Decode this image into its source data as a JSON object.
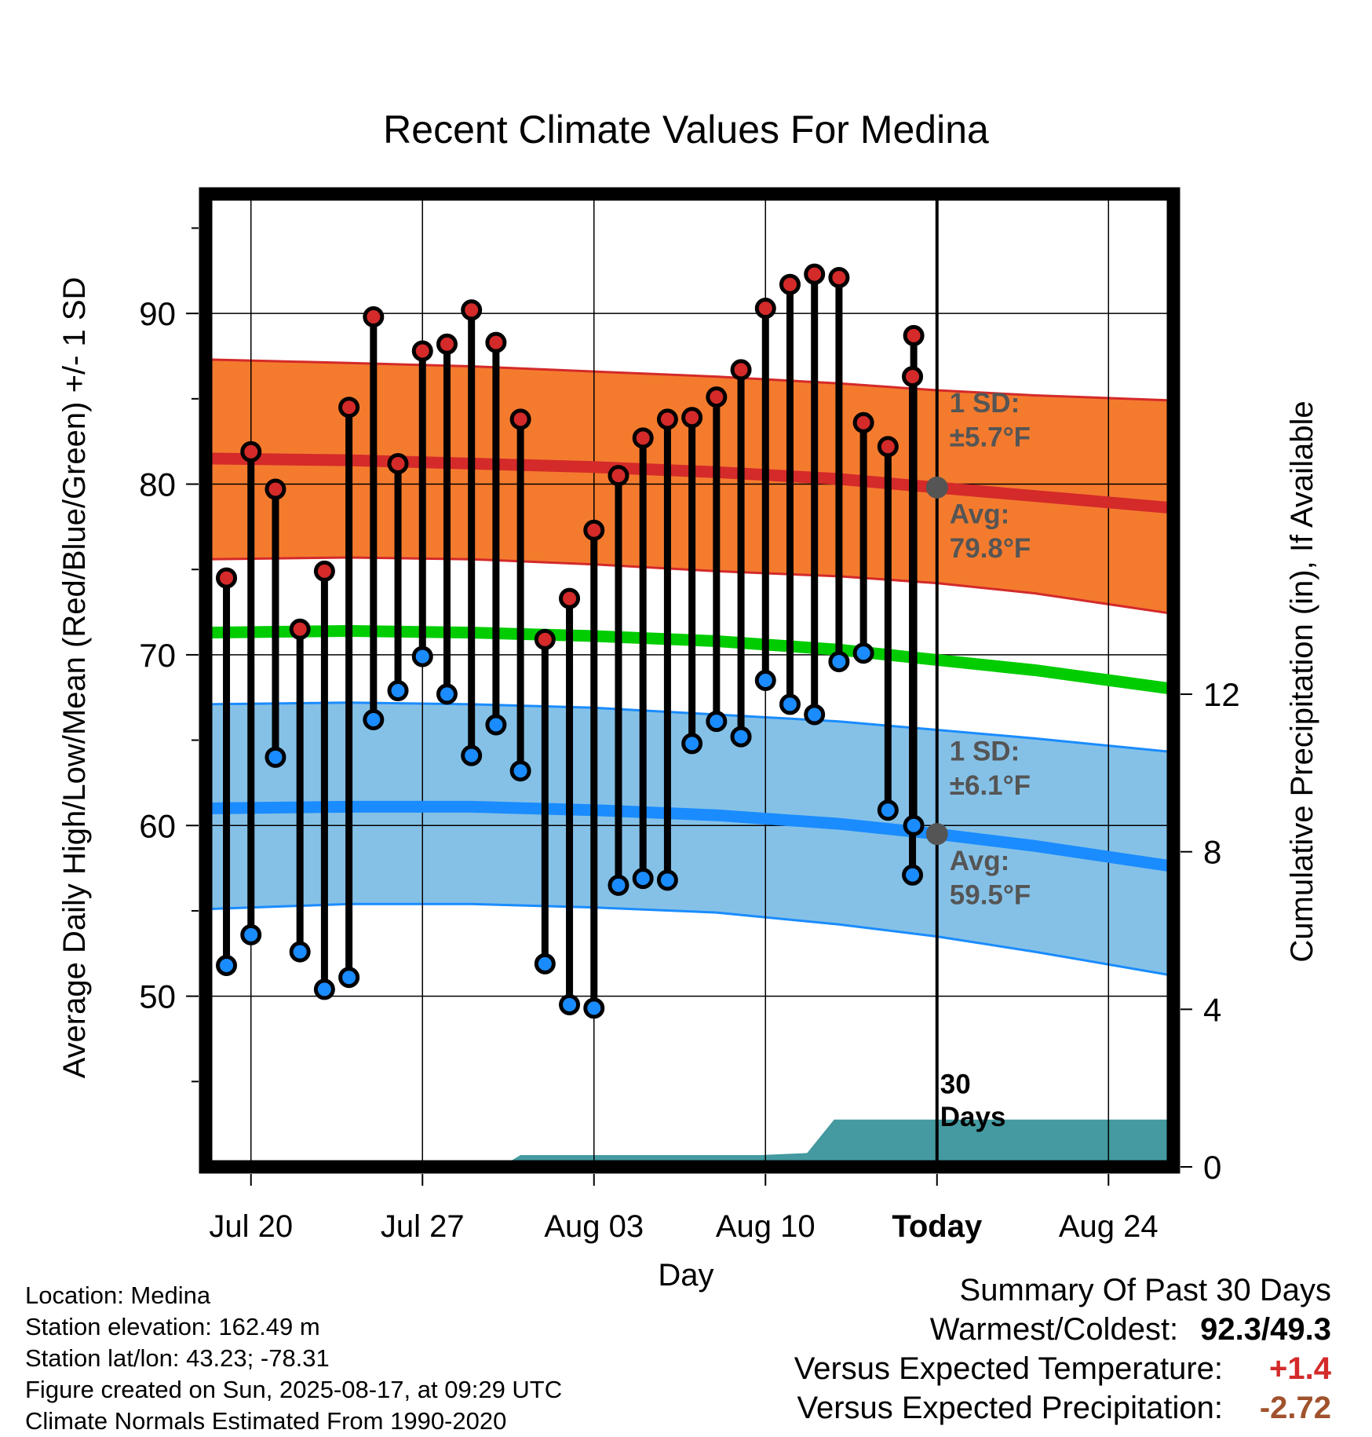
{
  "chart_data": {
    "type": "line",
    "title": "Recent Climate Values For Medina",
    "xlabel": "Day",
    "ylabel": "Average Daily High/Low/Mean (Red/Blue/Green) +/- 1 SD",
    "y2label": "Cumulative Precipitation (in), If Available",
    "ylim": [
      40,
      97
    ],
    "y2lim": [
      0,
      24.7
    ],
    "y_ticks": [
      50,
      60,
      70,
      80,
      90
    ],
    "y2_ticks": [
      0,
      4,
      8,
      12
    ],
    "x_tick_labels": [
      "Jul 20",
      "Jul 27",
      "Aug 03",
      "Aug 10",
      "Today",
      "Aug 24"
    ],
    "x_range_days": [
      -29.85,
      9.65
    ],
    "today_label": "Today",
    "days_label_num": "30",
    "days_label_word": "Days",
    "grid": true,
    "colors": {
      "high": "#d42a2a",
      "low": "#1a8cff",
      "mean": "#00cc00",
      "high_band": "#f47b2e",
      "low_band": "#85c1e7",
      "precip": "#449aa0",
      "annotation": "#555555"
    },
    "days": [
      -29,
      -28,
      -27,
      -26,
      -25,
      -24,
      -23,
      -22,
      -21,
      -20,
      -19,
      -18,
      -17,
      -16,
      -15,
      -14,
      -13,
      -12,
      -11,
      -10,
      -9,
      -8,
      -7,
      -6,
      -5,
      -4,
      -3,
      -2,
      -1
    ],
    "observed_high": [
      74.5,
      81.9,
      79.7,
      71.5,
      74.9,
      84.5,
      89.8,
      81.2,
      87.8,
      88.2,
      90.2,
      88.3,
      83.8,
      70.9,
      73.3,
      77.3,
      80.5,
      82.7,
      83.8,
      83.9,
      85.1,
      86.7,
      90.3,
      91.7,
      92.3,
      92.1,
      83.6,
      82.2,
      86.3
    ],
    "observed_low": [
      51.8,
      53.6,
      64.0,
      52.6,
      50.4,
      51.1,
      66.2,
      67.9,
      69.9,
      67.7,
      64.1,
      65.9,
      63.2,
      51.9,
      49.5,
      49.3,
      56.5,
      56.9,
      56.8,
      64.8,
      66.1,
      65.2,
      68.5,
      67.1,
      66.5,
      69.6,
      70.1,
      60.9,
      57.1
    ],
    "observed_high_last": 88.7,
    "observed_low_last": 60.0,
    "normals_x": [
      -29.85,
      -24,
      -19,
      -14,
      -9,
      -4,
      0,
      4,
      9.65
    ],
    "normal_high": [
      81.5,
      81.4,
      81.2,
      81.0,
      80.7,
      80.3,
      79.8,
      79.3,
      78.6
    ],
    "normal_high_upper": [
      87.3,
      87.1,
      86.9,
      86.6,
      86.3,
      85.9,
      85.5,
      85.2,
      84.9
    ],
    "normal_high_lower": [
      75.6,
      75.7,
      75.6,
      75.3,
      74.9,
      74.6,
      74.2,
      73.6,
      72.4
    ],
    "normal_mean": [
      71.3,
      71.4,
      71.3,
      71.1,
      70.8,
      70.3,
      69.7,
      69.1,
      68.0
    ],
    "normal_low": [
      61.0,
      61.1,
      61.1,
      60.9,
      60.6,
      60.1,
      59.5,
      58.8,
      57.6
    ],
    "normal_low_upper": [
      67.1,
      67.2,
      67.1,
      66.9,
      66.5,
      66.1,
      65.6,
      65.1,
      64.3
    ],
    "normal_low_lower": [
      55.1,
      55.4,
      55.4,
      55.2,
      54.9,
      54.2,
      53.5,
      52.6,
      51.2
    ],
    "precip_x": [
      -29.85,
      -17.8,
      -17.0,
      -7.2,
      -5.3,
      -4.2,
      9.65
    ],
    "precip_in": [
      0,
      0,
      0.3,
      0.3,
      0.35,
      1.2,
      1.2
    ],
    "annotations": {
      "high_sd_line1": "1 SD:",
      "high_sd_line2": "±5.7°F",
      "high_avg_line1": "Avg:",
      "high_avg_line2": "79.8°F",
      "low_sd_line1": "1 SD:",
      "low_sd_line2": "±6.1°F",
      "low_avg_line1": "Avg:",
      "low_avg_line2": "59.5°F",
      "today_high_avg": 79.8,
      "today_low_avg": 59.5
    }
  },
  "station": {
    "location": "Location: Medina",
    "elevation": "Station elevation: 162.49 m",
    "latlon": "Station lat/lon: 43.23; -78.31",
    "created": "Figure created on Sun, 2025-08-17, at 09:29 UTC",
    "normals": "Climate Normals Estimated From 1990-2020"
  },
  "summary": {
    "heading": "Summary Of Past 30 Days",
    "warm_cold_label": "Warmest/Coldest:",
    "warm_cold_value": "92.3/49.3",
    "temp_label": "Versus Expected Temperature:",
    "temp_value": "+1.4",
    "temp_color": "#d42a2a",
    "precip_label": "Versus Expected Precipitation:",
    "precip_value": "-2.72",
    "precip_color": "#a0522d"
  }
}
